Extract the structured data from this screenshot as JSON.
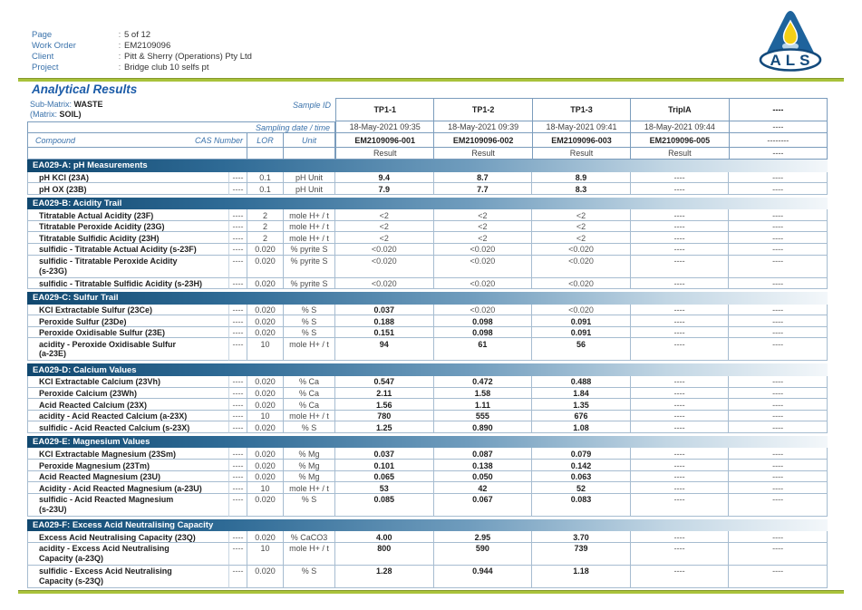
{
  "header": {
    "separator": ":",
    "fields": [
      {
        "label": "Page",
        "value": "5 of 12"
      },
      {
        "label": "Work Order",
        "value": "EM2109096"
      },
      {
        "label": "Client",
        "value": "Pitt & Sherry (Operations) Pty Ltd"
      },
      {
        "label": "Project",
        "value": "Bridge club 10 selfs pt"
      }
    ],
    "logo_text": "ALS"
  },
  "title": "Analytical Results",
  "table": {
    "sub_matrix_label": "Sub-Matrix:",
    "sub_matrix_value": "WASTE",
    "matrix_label": "(Matrix:",
    "matrix_value": "SOIL)",
    "sample_id_label": "Sample ID",
    "sampling_label": "Sampling date / time",
    "col_headers": {
      "compound": "Compound",
      "cas": "CAS Number",
      "lor": "LOR",
      "unit": "Unit"
    },
    "samples": [
      {
        "id": "TP1-1",
        "datetime": "18-May-2021 09:35",
        "lab_id": "EM2109096-001",
        "result_label": "Result"
      },
      {
        "id": "TP1-2",
        "datetime": "18-May-2021 09:39",
        "lab_id": "EM2109096-002",
        "result_label": "Result"
      },
      {
        "id": "TP1-3",
        "datetime": "18-May-2021 09:41",
        "lab_id": "EM2109096-003",
        "result_label": "Result"
      },
      {
        "id": "TripIA",
        "datetime": "18-May-2021 09:44",
        "lab_id": "EM2109096-005",
        "result_label": "Result"
      },
      {
        "id": "----",
        "datetime": "----",
        "lab_id": "--------",
        "result_label": "----"
      }
    ],
    "sections": [
      {
        "title": "EA029-A: pH Measurements",
        "rows": [
          {
            "compound": "pH KCl (23A)",
            "cas": "----",
            "lor": "0.1",
            "unit": "pH Unit",
            "results": [
              "9.4",
              "8.7",
              "8.9",
              "----",
              "----"
            ]
          },
          {
            "compound": "pH OX (23B)",
            "cas": "----",
            "lor": "0.1",
            "unit": "pH Unit",
            "results": [
              "7.9",
              "7.7",
              "8.3",
              "----",
              "----"
            ]
          }
        ]
      },
      {
        "title": "EA029-B: Acidity Trail",
        "rows": [
          {
            "compound": "Titratable Actual Acidity (23F)",
            "cas": "----",
            "lor": "2",
            "unit": "mole H+ / t",
            "results": [
              "<2",
              "<2",
              "<2",
              "----",
              "----"
            ]
          },
          {
            "compound": "Titratable Peroxide Acidity (23G)",
            "cas": "----",
            "lor": "2",
            "unit": "mole H+ / t",
            "results": [
              "<2",
              "<2",
              "<2",
              "----",
              "----"
            ]
          },
          {
            "compound": "Titratable Sulfidic Acidity (23H)",
            "cas": "----",
            "lor": "2",
            "unit": "mole H+ / t",
            "results": [
              "<2",
              "<2",
              "<2",
              "----",
              "----"
            ]
          },
          {
            "compound": "sulfidic - Titratable Actual Acidity (s-23F)",
            "cas": "----",
            "lor": "0.020",
            "unit": "% pyrite S",
            "results": [
              "<0.020",
              "<0.020",
              "<0.020",
              "----",
              "----"
            ]
          },
          {
            "compound": "sulfidic - Titratable Peroxide Acidity\n(s-23G)",
            "cas": "----",
            "lor": "0.020",
            "unit": "% pyrite S",
            "results": [
              "<0.020",
              "<0.020",
              "<0.020",
              "----",
              "----"
            ]
          },
          {
            "compound": "sulfidic - Titratable Sulfidic Acidity (s-23H)",
            "cas": "----",
            "lor": "0.020",
            "unit": "% pyrite S",
            "results": [
              "<0.020",
              "<0.020",
              "<0.020",
              "----",
              "----"
            ]
          }
        ]
      },
      {
        "title": "EA029-C: Sulfur Trail",
        "rows": [
          {
            "compound": "KCl Extractable Sulfur (23Ce)",
            "cas": "----",
            "lor": "0.020",
            "unit": "% S",
            "results": [
              "0.037",
              "<0.020",
              "<0.020",
              "----",
              "----"
            ]
          },
          {
            "compound": "Peroxide Sulfur (23De)",
            "cas": "----",
            "lor": "0.020",
            "unit": "% S",
            "results": [
              "0.188",
              "0.098",
              "0.091",
              "----",
              "----"
            ]
          },
          {
            "compound": "Peroxide Oxidisable Sulfur (23E)",
            "cas": "----",
            "lor": "0.020",
            "unit": "% S",
            "results": [
              "0.151",
              "0.098",
              "0.091",
              "----",
              "----"
            ]
          },
          {
            "compound": "acidity - Peroxide Oxidisable Sulfur\n(a-23E)",
            "cas": "----",
            "lor": "10",
            "unit": "mole H+ / t",
            "results": [
              "94",
              "61",
              "56",
              "----",
              "----"
            ]
          }
        ]
      },
      {
        "title": "EA029-D: Calcium Values",
        "rows": [
          {
            "compound": "KCl Extractable Calcium (23Vh)",
            "cas": "----",
            "lor": "0.020",
            "unit": "% Ca",
            "results": [
              "0.547",
              "0.472",
              "0.488",
              "----",
              "----"
            ]
          },
          {
            "compound": "Peroxide Calcium (23Wh)",
            "cas": "----",
            "lor": "0.020",
            "unit": "% Ca",
            "results": [
              "2.11",
              "1.58",
              "1.84",
              "----",
              "----"
            ]
          },
          {
            "compound": "Acid Reacted Calcium (23X)",
            "cas": "----",
            "lor": "0.020",
            "unit": "% Ca",
            "results": [
              "1.56",
              "1.11",
              "1.35",
              "----",
              "----"
            ]
          },
          {
            "compound": "acidity - Acid Reacted Calcium (a-23X)",
            "cas": "----",
            "lor": "10",
            "unit": "mole H+ / t",
            "results": [
              "780",
              "555",
              "676",
              "----",
              "----"
            ]
          },
          {
            "compound": "sulfidic - Acid Reacted Calcium (s-23X)",
            "cas": "----",
            "lor": "0.020",
            "unit": "% S",
            "results": [
              "1.25",
              "0.890",
              "1.08",
              "----",
              "----"
            ]
          }
        ]
      },
      {
        "title": "EA029-E: Magnesium Values",
        "rows": [
          {
            "compound": "KCl Extractable Magnesium (23Sm)",
            "cas": "----",
            "lor": "0.020",
            "unit": "% Mg",
            "results": [
              "0.037",
              "0.087",
              "0.079",
              "----",
              "----"
            ]
          },
          {
            "compound": "Peroxide Magnesium (23Tm)",
            "cas": "----",
            "lor": "0.020",
            "unit": "% Mg",
            "results": [
              "0.101",
              "0.138",
              "0.142",
              "----",
              "----"
            ]
          },
          {
            "compound": "Acid Reacted Magnesium (23U)",
            "cas": "----",
            "lor": "0.020",
            "unit": "% Mg",
            "results": [
              "0.065",
              "0.050",
              "0.063",
              "----",
              "----"
            ]
          },
          {
            "compound": "Acidity - Acid Reacted Magnesium (a-23U)",
            "cas": "----",
            "lor": "10",
            "unit": "mole H+ / t",
            "results": [
              "53",
              "42",
              "52",
              "----",
              "----"
            ]
          },
          {
            "compound": "sulfidic - Acid Reacted Magnesium\n(s-23U)",
            "cas": "----",
            "lor": "0.020",
            "unit": "% S",
            "results": [
              "0.085",
              "0.067",
              "0.083",
              "----",
              "----"
            ]
          }
        ]
      },
      {
        "title": "EA029-F: Excess Acid Neutralising Capacity",
        "rows": [
          {
            "compound": "Excess Acid Neutralising Capacity (23Q)",
            "cas": "----",
            "lor": "0.020",
            "unit": "% CaCO3",
            "results": [
              "4.00",
              "2.95",
              "3.70",
              "----",
              "----"
            ]
          },
          {
            "compound": "acidity - Excess Acid Neutralising\nCapacity (a-23Q)",
            "cas": "----",
            "lor": "10",
            "unit": "mole H+ / t",
            "results": [
              "800",
              "590",
              "739",
              "----",
              "----"
            ]
          },
          {
            "compound": "sulfidic - Excess Acid Neutralising\nCapacity (s-23Q)",
            "cas": "----",
            "lor": "0.020",
            "unit": "% S",
            "results": [
              "1.28",
              "0.944",
              "1.18",
              "----",
              "----"
            ]
          }
        ]
      }
    ]
  }
}
